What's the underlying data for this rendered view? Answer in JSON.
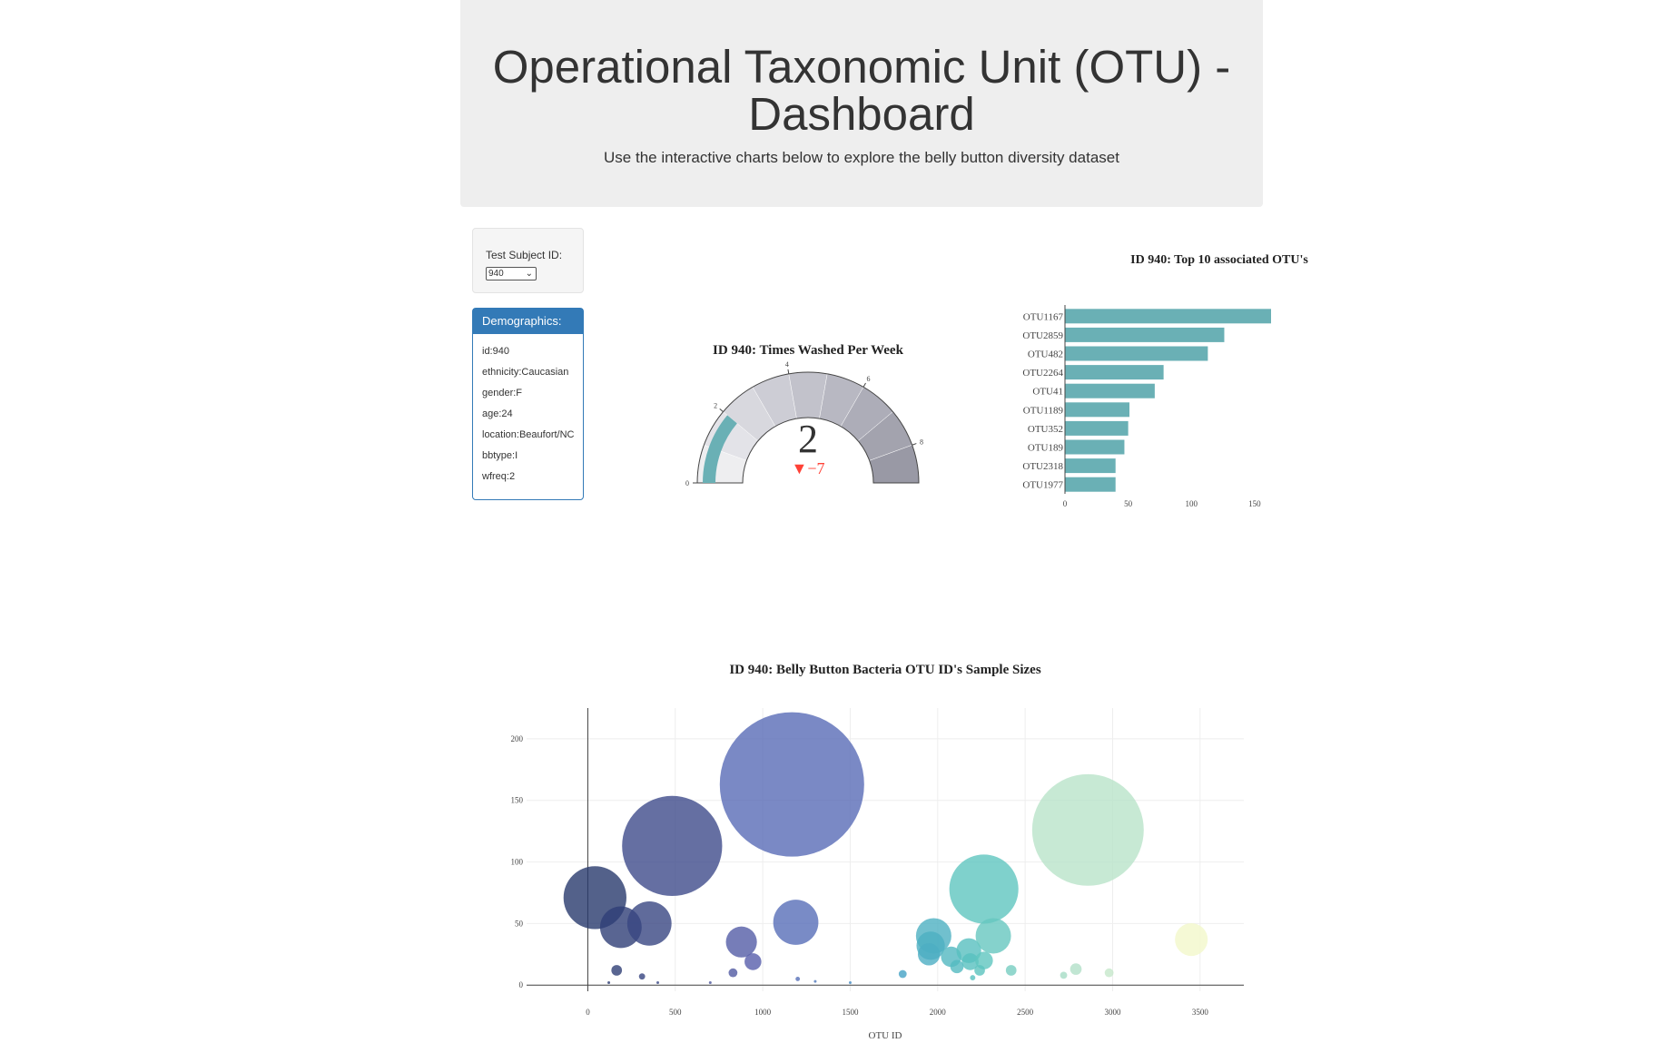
{
  "header": {
    "title": "Operational Taxonomic Unit (OTU) - Dashboard",
    "subtitle": "Use the interactive charts below to explore the belly button diversity dataset"
  },
  "selector": {
    "label": "Test Subject ID:",
    "value": "940"
  },
  "demographics": {
    "title": "Demographics:",
    "rows": [
      "id:940",
      "ethnicity:Caucasian",
      "gender:F",
      "age:24",
      "location:Beaufort/NC",
      "bbtype:I",
      "wfreq:2"
    ]
  },
  "colors": {
    "bar": "#6ab0b5",
    "gauge_value": "#6ab0b5",
    "delta_down": "#ff4136",
    "panel": "#337ab7"
  },
  "chart_data": [
    {
      "type": "gauge",
      "title": "ID 940: Times Washed Per Week",
      "value": 2,
      "delta": "−7",
      "range": [
        0,
        9
      ],
      "ticks": [
        "0",
        "2",
        "4",
        "6",
        "8"
      ],
      "step_colors": [
        "#eeeef0",
        "#e3e3e8",
        "#d8d8de",
        "#cdcdd5",
        "#c2c2cb",
        "#b8b8c2",
        "#adadb8",
        "#a3a3ae",
        "#9999a5"
      ]
    },
    {
      "type": "bar",
      "orientation": "horizontal",
      "title": "ID 940: Top 10 associated OTU's",
      "categories": [
        "OTU1167",
        "OTU2859",
        "OTU482",
        "OTU2264",
        "OTU41",
        "OTU1189",
        "OTU352",
        "OTU189",
        "OTU2318",
        "OTU1977"
      ],
      "values": [
        163,
        126,
        113,
        78,
        71,
        51,
        50,
        47,
        40,
        40
      ],
      "xlim": [
        0,
        163
      ],
      "xticks": [
        "0",
        "50",
        "100",
        "150"
      ]
    },
    {
      "type": "scatter",
      "title": "ID 940: Belly Button Bacteria OTU ID's Sample Sizes",
      "xlabel": "OTU ID",
      "ylabel": "",
      "xlim": [
        -350,
        3750
      ],
      "ylim": [
        -5,
        225
      ],
      "xticks": [
        "0",
        "500",
        "1000",
        "1500",
        "2000",
        "2500",
        "3000",
        "3500"
      ],
      "yticks": [
        "0",
        "50",
        "100",
        "150",
        "200"
      ],
      "points": [
        {
          "x": 41,
          "y": 71
        },
        {
          "x": 189,
          "y": 47
        },
        {
          "x": 352,
          "y": 50
        },
        {
          "x": 482,
          "y": 113
        },
        {
          "x": 878,
          "y": 35
        },
        {
          "x": 944,
          "y": 19
        },
        {
          "x": 1167,
          "y": 163
        },
        {
          "x": 1189,
          "y": 51
        },
        {
          "x": 165,
          "y": 12
        },
        {
          "x": 310,
          "y": 7
        },
        {
          "x": 830,
          "y": 10
        },
        {
          "x": 1200,
          "y": 5
        },
        {
          "x": 1977,
          "y": 40
        },
        {
          "x": 1960,
          "y": 32
        },
        {
          "x": 1950,
          "y": 25
        },
        {
          "x": 2077,
          "y": 23
        },
        {
          "x": 2178,
          "y": 28
        },
        {
          "x": 2186,
          "y": 19
        },
        {
          "x": 2264,
          "y": 78
        },
        {
          "x": 2318,
          "y": 40
        },
        {
          "x": 2265,
          "y": 20
        },
        {
          "x": 2240,
          "y": 12
        },
        {
          "x": 2110,
          "y": 15
        },
        {
          "x": 2200,
          "y": 6
        },
        {
          "x": 1800,
          "y": 9
        },
        {
          "x": 2420,
          "y": 12
        },
        {
          "x": 2859,
          "y": 126
        },
        {
          "x": 2790,
          "y": 13
        },
        {
          "x": 2720,
          "y": 8
        },
        {
          "x": 3450,
          "y": 37
        },
        {
          "x": 2980,
          "y": 10
        },
        {
          "x": 120,
          "y": 2
        },
        {
          "x": 400,
          "y": 2
        },
        {
          "x": 700,
          "y": 2
        },
        {
          "x": 1300,
          "y": 3
        },
        {
          "x": 1500,
          "y": 2
        }
      ]
    }
  ]
}
